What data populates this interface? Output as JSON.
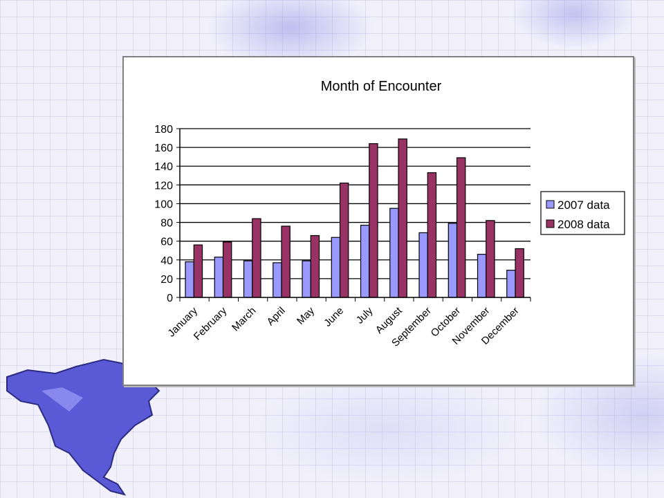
{
  "chart_data": {
    "type": "bar",
    "title": "Month of Encounter",
    "xlabel": "",
    "ylabel": "",
    "categories": [
      "January",
      "February",
      "March",
      "April",
      "May",
      "June",
      "July",
      "August",
      "September",
      "October",
      "November",
      "December"
    ],
    "series": [
      {
        "name": "2007 data",
        "color": "#9999FF",
        "values": [
          38,
          43,
          39,
          37,
          39,
          64,
          77,
          95,
          69,
          79,
          46,
          29
        ]
      },
      {
        "name": "2008 data",
        "color": "#993366",
        "values": [
          56,
          59,
          84,
          76,
          66,
          122,
          164,
          169,
          133,
          149,
          82,
          52
        ]
      }
    ],
    "ylim": [
      0,
      180
    ],
    "yticks": [
      0,
      20,
      40,
      60,
      80,
      100,
      120,
      140,
      160,
      180
    ],
    "grid": true,
    "legend": "right"
  }
}
